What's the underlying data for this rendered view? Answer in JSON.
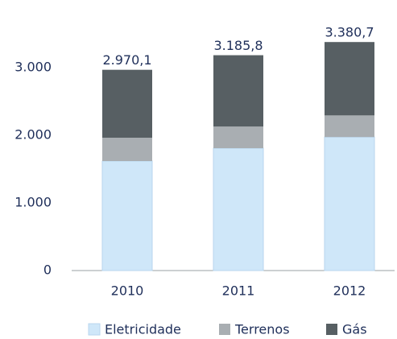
{
  "chart_data": {
    "type": "stacked_bar",
    "categories": [
      "2010",
      "2011",
      "2012"
    ],
    "series": [
      {
        "name": "Eletricidade",
        "color": "#cfe7f9",
        "values": [
          1620,
          1810,
          1975
        ]
      },
      {
        "name": "Terrenos",
        "color": "#a9aeb2",
        "values": [
          345,
          320,
          320
        ]
      },
      {
        "name": "Gás",
        "color": "#575f63",
        "values": [
          1005.1,
          1055.8,
          1085.7
        ]
      }
    ],
    "totals": [
      2970.1,
      3185.8,
      3380.7
    ],
    "total_labels": [
      "2.970,1",
      "3.185,8",
      "3.380,7"
    ],
    "ylim": [
      0,
      3800
    ],
    "yticks": [
      0,
      {
        "value": 1000,
        "label": "1.000"
      },
      {
        "value": 2000,
        "label": "2.000"
      },
      {
        "value": 3000,
        "label": "3.000"
      }
    ],
    "legend": "bottom"
  }
}
